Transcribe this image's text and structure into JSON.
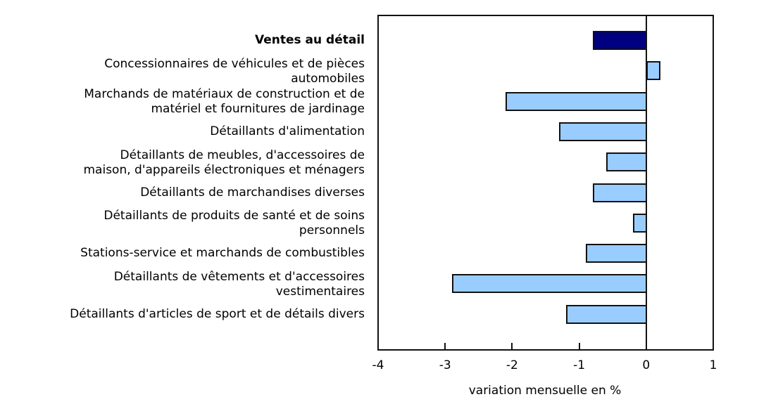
{
  "chart_data": {
    "type": "bar",
    "orientation": "horizontal",
    "title": "",
    "xlabel": "variation mensuelle en %",
    "ylabel": "",
    "xlim": [
      -4,
      1
    ],
    "xticks": [
      -4,
      -3,
      -2,
      -1,
      0,
      1
    ],
    "grid": false,
    "legend": null,
    "categories": [
      "Ventes au détail",
      "Concessionnaires de véhicules et de pièces automobiles",
      "Marchands de matériaux de construction et de matériel et fournitures de jardinage",
      "Détaillants d'alimentation",
      "Détaillants de meubles, d'accessoires de maison, d'appareils électroniques et ménagers",
      "Détaillants de marchandises diverses",
      "Détaillants de produits de santé et de soins personnels",
      "Stations-service et marchands de combustibles",
      "Détaillants de vêtements et d'accessoires vestimentaires",
      "Détaillants d'articles de sport et de détails divers"
    ],
    "values": [
      -0.8,
      0.2,
      -2.1,
      -1.3,
      -0.6,
      -0.8,
      -0.2,
      -0.9,
      -2.9,
      -1.2
    ],
    "colors": {
      "total": "#000080",
      "components": "#99ccff",
      "border": "#111111"
    }
  },
  "labels": [
    {
      "lines": [
        "Ventes au détail"
      ],
      "bold": true
    },
    {
      "lines": [
        "Concessionnaires de véhicules et de pièces",
        "automobiles"
      ],
      "bold": false
    },
    {
      "lines": [
        "Marchands de matériaux de construction et de",
        "matériel et fournitures de jardinage"
      ],
      "bold": false
    },
    {
      "lines": [
        "Détaillants d'alimentation"
      ],
      "bold": false
    },
    {
      "lines": [
        "Détaillants de meubles, d'accessoires de",
        "maison, d'appareils électroniques et ménagers"
      ],
      "bold": false
    },
    {
      "lines": [
        "Détaillants de marchandises diverses"
      ],
      "bold": false
    },
    {
      "lines": [
        "Détaillants de produits de santé et de soins",
        "personnels"
      ],
      "bold": false
    },
    {
      "lines": [
        "Stations-service et marchands de combustibles"
      ],
      "bold": false
    },
    {
      "lines": [
        "Détaillants de vêtements et d'accessoires",
        "vestimentaires"
      ],
      "bold": false
    },
    {
      "lines": [
        "Détaillants d'articles de sport et de détails divers"
      ],
      "bold": false
    }
  ],
  "tick_labels": [
    "-4",
    "-3",
    "-2",
    "-1",
    "0",
    "1"
  ],
  "x_axis_title": "variation mensuelle en %"
}
